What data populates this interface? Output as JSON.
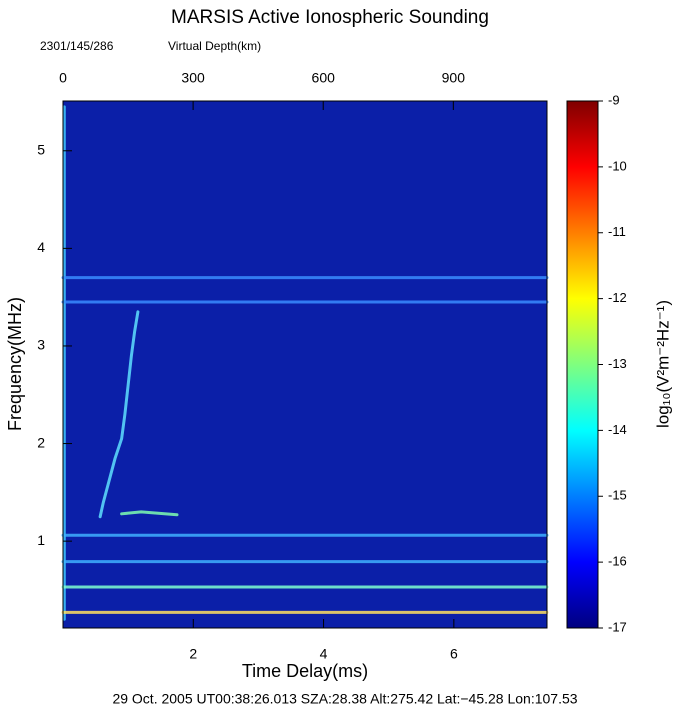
{
  "chart_data": {
    "type": "ionogram",
    "title": "MARSIS Active Ionospheric Sounding",
    "subtitle": "2301/145/286",
    "x2_label": "Virtual Depth(km)",
    "x_label": "Time Delay(ms)",
    "y_label": "Frequency(MHz)",
    "colorbar_label": "log₁₀(V²m⁻²Hz⁻¹)",
    "footer": "29 Oct. 2005 UT00:38:26.013  SZA:28.38  Alt:275.42  Lat:−45.28  Lon:107.53",
    "xlim": [
      0,
      7.43
    ],
    "xticks": [
      2,
      4,
      6
    ],
    "x2lim": [
      0,
      1116
    ],
    "x2ticks": [
      0,
      300,
      600,
      900
    ],
    "ylim": [
      0.11,
      5.51
    ],
    "yticks": [
      1,
      2,
      3,
      4,
      5
    ],
    "zlim": [
      -17,
      -9
    ],
    "zticks": [
      -17,
      -16,
      -15,
      -14,
      -13,
      -12,
      -11,
      -10,
      -9
    ],
    "background": "#0b1fa8",
    "colormap": [
      "#00007f",
      "#0000ff",
      "#007fff",
      "#00ffff",
      "#7fff7f",
      "#ffff00",
      "#ff7f00",
      "#ff0000",
      "#7f0000"
    ],
    "series": [
      {
        "color": "#5fe0ff",
        "x": [
          0.57,
          0.62,
          0.7,
          0.8,
          0.9,
          0.95,
          1.0,
          1.05,
          1.1,
          1.15
        ],
        "values": [
          1.25,
          1.4,
          1.6,
          1.85,
          2.05,
          2.3,
          2.6,
          2.9,
          3.15,
          3.35
        ]
      },
      {
        "color": "#7fffb0",
        "x": [
          0.9,
          1.2,
          1.75
        ],
        "values": [
          1.28,
          1.3,
          1.27
        ]
      },
      {
        "color": "#40c8ff",
        "x": [
          0.02,
          0.02
        ],
        "values": [
          0.2,
          5.45
        ]
      },
      {
        "color": "#ffe060",
        "x": [
          0,
          7.43
        ],
        "values": [
          0.27,
          0.27
        ]
      },
      {
        "color": "#7fffd0",
        "x": [
          0,
          7.43
        ],
        "values": [
          0.53,
          0.53
        ]
      },
      {
        "color": "#40b0ff",
        "x": [
          0,
          7.43
        ],
        "values": [
          0.79,
          0.79
        ]
      },
      {
        "color": "#40b0ff",
        "x": [
          0,
          7.43
        ],
        "values": [
          1.06,
          1.06
        ]
      },
      {
        "color": "#3a8cff",
        "x": [
          0,
          7.43
        ],
        "values": [
          3.45,
          3.45
        ]
      },
      {
        "color": "#3a8cff",
        "x": [
          0,
          7.43
        ],
        "values": [
          3.7,
          3.7
        ]
      }
    ]
  }
}
